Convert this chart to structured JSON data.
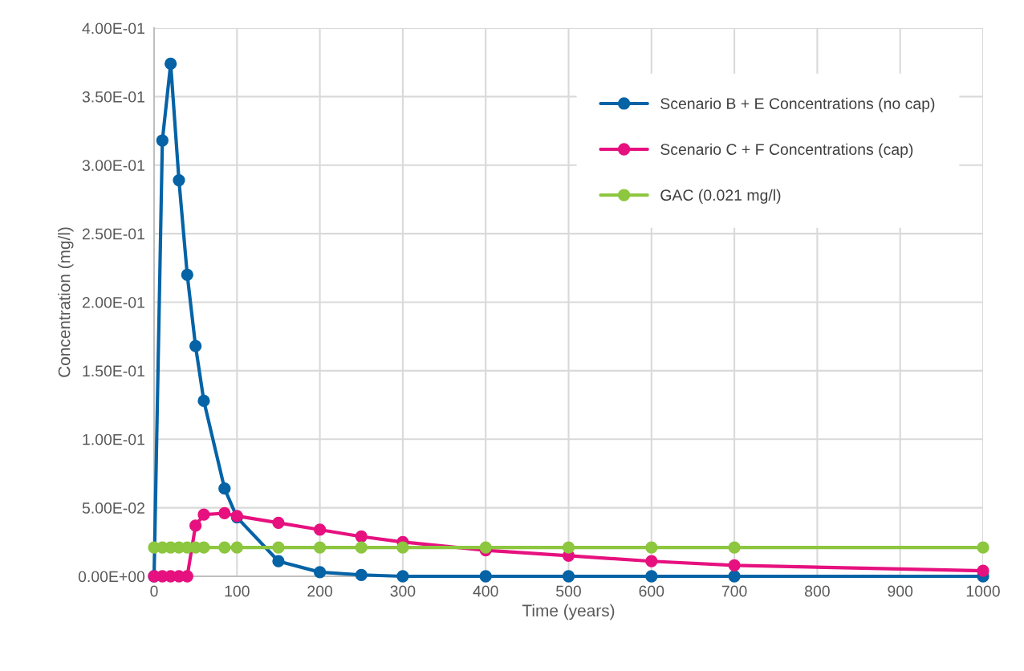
{
  "chart_data": {
    "type": "line",
    "xlabel": "Time (years)",
    "ylabel": "Concentration (mg/l)",
    "x": [
      0,
      10,
      20,
      30,
      40,
      50,
      60,
      85,
      100,
      150,
      200,
      250,
      300,
      400,
      500,
      600,
      700,
      1000
    ],
    "series": [
      {
        "name": "Scenario B + E Concentrations (no cap)",
        "color": "#0563a6",
        "values": [
          0,
          0.318,
          0.374,
          0.289,
          0.22,
          0.168,
          0.128,
          0.064,
          0.043,
          0.011,
          0.003,
          0.001,
          0,
          0,
          0,
          0,
          0,
          0
        ]
      },
      {
        "name": "Scenario C + F Concentrations (cap)",
        "color": "#e6117f",
        "values": [
          0,
          0,
          0,
          0,
          0,
          0.037,
          0.045,
          0.046,
          0.044,
          0.039,
          0.034,
          0.029,
          0.025,
          0.019,
          0.015,
          0.011,
          0.008,
          0.004
        ]
      },
      {
        "name": "GAC (0.021 mg/l)",
        "color": "#8dc63f",
        "values": [
          0.021,
          0.021,
          0.021,
          0.021,
          0.021,
          0.021,
          0.021,
          0.021,
          0.021,
          0.021,
          0.021,
          0.021,
          0.021,
          0.021,
          0.021,
          0.021,
          0.021,
          0.021
        ]
      }
    ],
    "xlim": [
      0,
      1000
    ],
    "xticks": [
      0,
      100,
      200,
      300,
      400,
      500,
      600,
      700,
      800,
      900,
      1000
    ],
    "ylim": [
      0,
      0.4
    ],
    "yticks": [
      {
        "value": 0,
        "label": "0.00E+00"
      },
      {
        "value": 0.05,
        "label": "5.00E-02"
      },
      {
        "value": 0.1,
        "label": "1.00E-01"
      },
      {
        "value": 0.15,
        "label": "1.50E-01"
      },
      {
        "value": 0.2,
        "label": "2.00E-01"
      },
      {
        "value": 0.25,
        "label": "2.50E-01"
      },
      {
        "value": 0.3,
        "label": "3.00E-01"
      },
      {
        "value": 0.35,
        "label": "3.50E-01"
      },
      {
        "value": 0.4,
        "label": "4.00E-01"
      }
    ],
    "grid": true,
    "legend": "top right",
    "marker": "circle",
    "line_style": "solid"
  }
}
